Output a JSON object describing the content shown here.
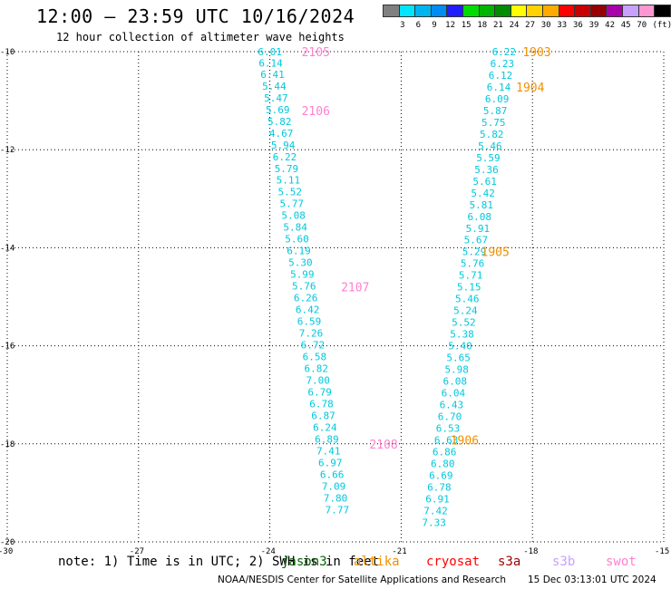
{
  "header": {
    "title": "12:00 — 23:59 UTC 10/16/2024",
    "subtitle": "12 hour collection of altimeter wave heights"
  },
  "color_scale": {
    "bins": [
      {
        "color": "#808080",
        "label": ""
      },
      {
        "color": "#00e5ff",
        "label": "3"
      },
      {
        "color": "#00b4f0",
        "label": "6"
      },
      {
        "color": "#008cf0",
        "label": "9"
      },
      {
        "color": "#1e1eff",
        "label": "12"
      },
      {
        "color": "#00dc00",
        "label": "15"
      },
      {
        "color": "#00b400",
        "label": "18"
      },
      {
        "color": "#008c00",
        "label": "21"
      },
      {
        "color": "#ffff00",
        "label": "24"
      },
      {
        "color": "#ffd200",
        "label": "27"
      },
      {
        "color": "#ffaa00",
        "label": "30"
      },
      {
        "color": "#ff0000",
        "label": "33"
      },
      {
        "color": "#c80000",
        "label": "36"
      },
      {
        "color": "#960000",
        "label": "39"
      },
      {
        "color": "#aa00aa",
        "label": "42"
      },
      {
        "color": "#c8a0ff",
        "label": "45"
      },
      {
        "color": "#ff96d2",
        "label": "70"
      },
      {
        "color": "#000000",
        "label": ""
      }
    ],
    "unit": "(ft)"
  },
  "axes": {
    "y_labels": [
      "-10",
      "-12",
      "-14",
      "-16",
      "-18",
      "-20"
    ],
    "y_values": [
      -10,
      -12,
      -14,
      -16,
      -18,
      -20
    ],
    "x_labels": [
      "-30",
      "-27",
      "-24",
      "-21",
      "-18",
      "-15"
    ],
    "x_values": [
      -30,
      -27,
      -24,
      -21,
      -18,
      -15
    ],
    "lat_range": [
      -20,
      -10
    ],
    "lon_range": [
      -30,
      -15
    ]
  },
  "tracks": [
    {
      "name": "west-track",
      "color": "#00c8dc",
      "points": [
        {
          "lon": -24.0,
          "lat": -10.0,
          "v": "6.01"
        },
        {
          "lon": -23.98,
          "lat": -10.23,
          "v": "6.14"
        },
        {
          "lon": -23.94,
          "lat": -10.46,
          "v": "6.41"
        },
        {
          "lon": -23.9,
          "lat": -10.7,
          "v": "5.44"
        },
        {
          "lon": -23.86,
          "lat": -10.94,
          "v": "5.47"
        },
        {
          "lon": -23.82,
          "lat": -11.18,
          "v": "5.69"
        },
        {
          "lon": -23.78,
          "lat": -11.42,
          "v": "5.82"
        },
        {
          "lon": -23.74,
          "lat": -11.66,
          "v": "4.67"
        },
        {
          "lon": -23.7,
          "lat": -11.9,
          "v": "5.94"
        },
        {
          "lon": -23.66,
          "lat": -12.14,
          "v": "6.22"
        },
        {
          "lon": -23.62,
          "lat": -12.38,
          "v": "5.79"
        },
        {
          "lon": -23.58,
          "lat": -12.62,
          "v": "5.11"
        },
        {
          "lon": -23.54,
          "lat": -12.86,
          "v": "5.52"
        },
        {
          "lon": -23.5,
          "lat": -13.1,
          "v": "5.77"
        },
        {
          "lon": -23.46,
          "lat": -13.34,
          "v": "5.08"
        },
        {
          "lon": -23.42,
          "lat": -13.58,
          "v": "5.84"
        },
        {
          "lon": -23.38,
          "lat": -13.82,
          "v": "5.60"
        },
        {
          "lon": -23.34,
          "lat": -14.06,
          "v": "6.19"
        },
        {
          "lon": -23.3,
          "lat": -14.3,
          "v": "5.30"
        },
        {
          "lon": -23.26,
          "lat": -14.54,
          "v": "5.99"
        },
        {
          "lon": -23.22,
          "lat": -14.78,
          "v": "5.76"
        },
        {
          "lon": -23.18,
          "lat": -15.02,
          "v": "6.26"
        },
        {
          "lon": -23.14,
          "lat": -15.26,
          "v": "6.42"
        },
        {
          "lon": -23.1,
          "lat": -15.5,
          "v": "6.59"
        },
        {
          "lon": -23.06,
          "lat": -15.74,
          "v": "7.26"
        },
        {
          "lon": -23.02,
          "lat": -15.98,
          "v": "6.72"
        },
        {
          "lon": -22.98,
          "lat": -16.22,
          "v": "6.58"
        },
        {
          "lon": -22.94,
          "lat": -16.46,
          "v": "6.82"
        },
        {
          "lon": -22.9,
          "lat": -16.7,
          "v": "7.00"
        },
        {
          "lon": -22.86,
          "lat": -16.94,
          "v": "6.79"
        },
        {
          "lon": -22.82,
          "lat": -17.18,
          "v": "6.78"
        },
        {
          "lon": -22.78,
          "lat": -17.42,
          "v": "6.87"
        },
        {
          "lon": -22.74,
          "lat": -17.66,
          "v": "6.24"
        },
        {
          "lon": -22.7,
          "lat": -17.9,
          "v": "6.89"
        },
        {
          "lon": -22.66,
          "lat": -18.14,
          "v": "7.41"
        },
        {
          "lon": -22.62,
          "lat": -18.38,
          "v": "6.97"
        },
        {
          "lon": -22.58,
          "lat": -18.62,
          "v": "6.66"
        },
        {
          "lon": -22.54,
          "lat": -18.86,
          "v": "7.09"
        },
        {
          "lon": -22.5,
          "lat": -19.1,
          "v": "7.80"
        },
        {
          "lon": -22.46,
          "lat": -19.34,
          "v": "7.77"
        }
      ]
    },
    {
      "name": "east-track",
      "color": "#00c8dc",
      "points": [
        {
          "lon": -18.65,
          "lat": -10.0,
          "v": "6.22"
        },
        {
          "lon": -18.69,
          "lat": -10.24,
          "v": "6.23"
        },
        {
          "lon": -18.73,
          "lat": -10.48,
          "v": "6.12"
        },
        {
          "lon": -18.77,
          "lat": -10.72,
          "v": "6.14"
        },
        {
          "lon": -18.81,
          "lat": -10.96,
          "v": "6.09"
        },
        {
          "lon": -18.85,
          "lat": -11.2,
          "v": "5.87"
        },
        {
          "lon": -18.89,
          "lat": -11.44,
          "v": "5.75"
        },
        {
          "lon": -18.93,
          "lat": -11.68,
          "v": "5.82"
        },
        {
          "lon": -18.97,
          "lat": -11.92,
          "v": "5.46"
        },
        {
          "lon": -19.01,
          "lat": -12.16,
          "v": "5.59"
        },
        {
          "lon": -19.05,
          "lat": -12.4,
          "v": "5.36"
        },
        {
          "lon": -19.09,
          "lat": -12.64,
          "v": "5.61"
        },
        {
          "lon": -19.13,
          "lat": -12.88,
          "v": "5.42"
        },
        {
          "lon": -19.17,
          "lat": -13.12,
          "v": "5.81"
        },
        {
          "lon": -19.21,
          "lat": -13.36,
          "v": "6.08"
        },
        {
          "lon": -19.25,
          "lat": -13.6,
          "v": "5.91"
        },
        {
          "lon": -19.29,
          "lat": -13.84,
          "v": "5.67"
        },
        {
          "lon": -19.33,
          "lat": -14.08,
          "v": "5.29"
        },
        {
          "lon": -19.37,
          "lat": -14.32,
          "v": "5.76"
        },
        {
          "lon": -19.41,
          "lat": -14.56,
          "v": "5.71"
        },
        {
          "lon": -19.45,
          "lat": -14.8,
          "v": "5.15"
        },
        {
          "lon": -19.49,
          "lat": -15.04,
          "v": "5.46"
        },
        {
          "lon": -19.53,
          "lat": -15.28,
          "v": "5.24"
        },
        {
          "lon": -19.57,
          "lat": -15.52,
          "v": "5.52"
        },
        {
          "lon": -19.61,
          "lat": -15.76,
          "v": "5.38"
        },
        {
          "lon": -19.65,
          "lat": -16.0,
          "v": "5.40"
        },
        {
          "lon": -19.69,
          "lat": -16.24,
          "v": "5.65"
        },
        {
          "lon": -19.73,
          "lat": -16.48,
          "v": "5.98"
        },
        {
          "lon": -19.77,
          "lat": -16.72,
          "v": "6.08"
        },
        {
          "lon": -19.81,
          "lat": -16.96,
          "v": "6.04"
        },
        {
          "lon": -19.85,
          "lat": -17.2,
          "v": "6.43"
        },
        {
          "lon": -19.89,
          "lat": -17.44,
          "v": "6.70"
        },
        {
          "lon": -19.93,
          "lat": -17.68,
          "v": "6.53"
        },
        {
          "lon": -19.97,
          "lat": -17.92,
          "v": "6.63"
        },
        {
          "lon": -20.01,
          "lat": -18.16,
          "v": "6.86"
        },
        {
          "lon": -20.05,
          "lat": -18.4,
          "v": "6.80"
        },
        {
          "lon": -20.09,
          "lat": -18.64,
          "v": "6.69"
        },
        {
          "lon": -20.13,
          "lat": -18.88,
          "v": "6.78"
        },
        {
          "lon": -20.17,
          "lat": -19.12,
          "v": "6.91"
        },
        {
          "lon": -20.21,
          "lat": -19.36,
          "v": "7.42"
        },
        {
          "lon": -20.25,
          "lat": -19.6,
          "v": "7.33"
        }
      ]
    }
  ],
  "time_labels": [
    {
      "text": "2105",
      "lon": -22.95,
      "lat": -10.0,
      "color": "#ff80d0"
    },
    {
      "text": "2106",
      "lon": -22.95,
      "lat": -11.2,
      "color": "#ff80d0"
    },
    {
      "text": "2107",
      "lon": -22.05,
      "lat": -14.8,
      "color": "#ff80d0"
    },
    {
      "text": "2108",
      "lon": -21.4,
      "lat": -18.0,
      "color": "#ff80d0"
    },
    {
      "text": "1903",
      "lon": -17.9,
      "lat": -10.0,
      "color": "#f09000"
    },
    {
      "text": "1904",
      "lon": -18.05,
      "lat": -10.72,
      "color": "#f09000"
    },
    {
      "text": "1905",
      "lon": -18.85,
      "lat": -14.08,
      "color": "#f09000"
    },
    {
      "text": "1906",
      "lon": -19.55,
      "lat": -17.92,
      "color": "#f09000"
    }
  ],
  "note": "note: 1) Time is in UTC; 2) SWH is in feet",
  "satellites": [
    {
      "name": "jason3",
      "color": "#006400"
    },
    {
      "name": "altika",
      "color": "#f09000"
    },
    {
      "name": "cryosat",
      "color": "#ff0000"
    },
    {
      "name": "s3a",
      "color": "#a00000"
    },
    {
      "name": "s3b",
      "color": "#c8a0ff"
    },
    {
      "name": "swot",
      "color": "#ff80d0"
    }
  ],
  "footer": {
    "credit": "NOAA/NESDIS Center for Satellite Applications and Research",
    "timestamp": "15 Dec 03:13:01 UTC 2024"
  }
}
